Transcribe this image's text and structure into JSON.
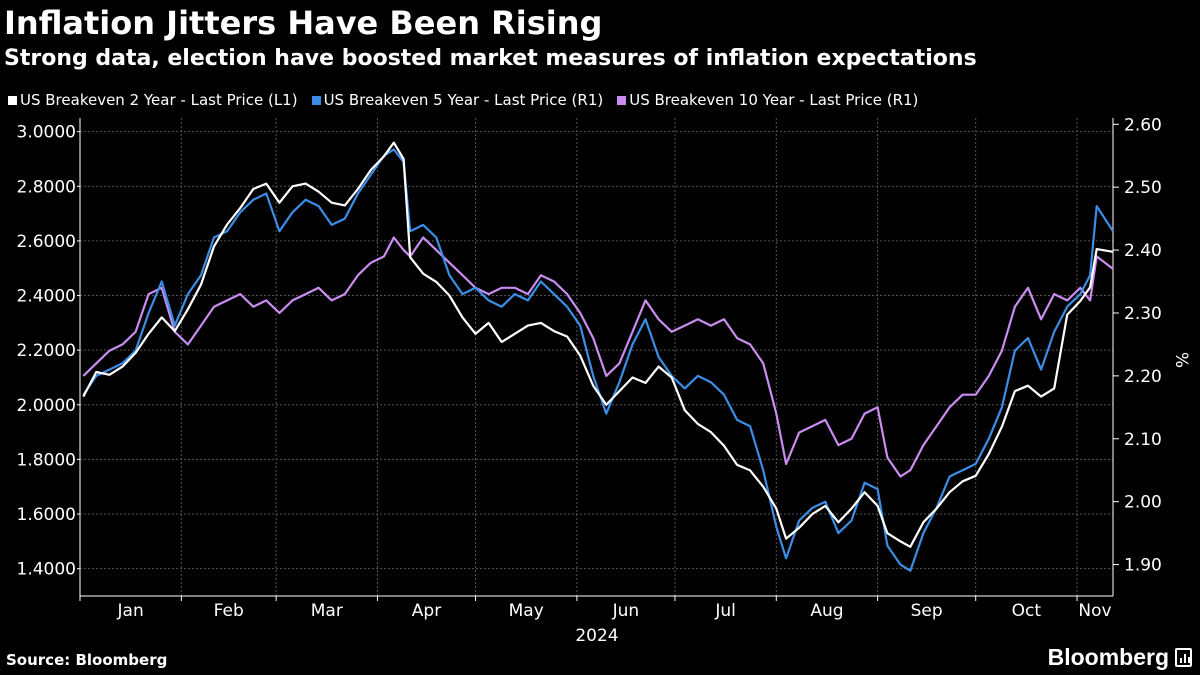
{
  "header": {
    "title": "Inflation Jitters Have Been Rising",
    "subtitle": "Strong data, election have boosted market measures of inflation expectations"
  },
  "footer": {
    "source": "Source: Bloomberg",
    "logo_text": "Bloomberg"
  },
  "chart_data": {
    "type": "line",
    "title": "Inflation Jitters Have Been Rising",
    "subtitle": "Strong data, election have boosted market measures of inflation expectations",
    "xlabel": "2024",
    "right_axis_unit": "%",
    "grid": true,
    "legend_position": "top-left",
    "x_ticks": [
      "Jan",
      "Feb",
      "Mar",
      "Apr",
      "May",
      "Jun",
      "Jul",
      "Aug",
      "Sep",
      "Oct",
      "Nov"
    ],
    "x_range": [
      "2024-01-01",
      "2024-11-12"
    ],
    "y_left": {
      "range": [
        1.3,
        3.05
      ],
      "ticks": [
        "3.0000",
        "2.8000",
        "2.6000",
        "2.4000",
        "2.2000",
        "2.0000",
        "1.8000",
        "1.6000",
        "1.4000"
      ]
    },
    "y_right": {
      "range": [
        1.85,
        2.61
      ],
      "ticks": [
        "2.60",
        "2.50",
        "2.40",
        "2.30",
        "2.20",
        "2.10",
        "2.00",
        "1.90"
      ]
    },
    "series": [
      {
        "name": "US Breakeven 2 Year - Last Price (L1)",
        "axis": "left",
        "color": "#ffffff",
        "points": [
          [
            "2024-01-02",
            2.03
          ],
          [
            "2024-01-06",
            2.12
          ],
          [
            "2024-01-10",
            2.11
          ],
          [
            "2024-01-14",
            2.14
          ],
          [
            "2024-01-18",
            2.19
          ],
          [
            "2024-01-22",
            2.26
          ],
          [
            "2024-01-26",
            2.32
          ],
          [
            "2024-01-30",
            2.27
          ],
          [
            "2024-02-03",
            2.35
          ],
          [
            "2024-02-07",
            2.44
          ],
          [
            "2024-02-11",
            2.58
          ],
          [
            "2024-02-15",
            2.66
          ],
          [
            "2024-02-19",
            2.72
          ],
          [
            "2024-02-23",
            2.79
          ],
          [
            "2024-02-27",
            2.81
          ],
          [
            "2024-03-02",
            2.74
          ],
          [
            "2024-03-06",
            2.8
          ],
          [
            "2024-03-10",
            2.81
          ],
          [
            "2024-03-14",
            2.78
          ],
          [
            "2024-03-18",
            2.74
          ],
          [
            "2024-03-22",
            2.73
          ],
          [
            "2024-03-26",
            2.79
          ],
          [
            "2024-03-30",
            2.86
          ],
          [
            "2024-04-03",
            2.91
          ],
          [
            "2024-04-06",
            2.96
          ],
          [
            "2024-04-09",
            2.9
          ],
          [
            "2024-04-11",
            2.54
          ],
          [
            "2024-04-15",
            2.48
          ],
          [
            "2024-04-19",
            2.45
          ],
          [
            "2024-04-23",
            2.4
          ],
          [
            "2024-04-27",
            2.32
          ],
          [
            "2024-05-01",
            2.26
          ],
          [
            "2024-05-05",
            2.3
          ],
          [
            "2024-05-09",
            2.23
          ],
          [
            "2024-05-13",
            2.26
          ],
          [
            "2024-05-17",
            2.29
          ],
          [
            "2024-05-21",
            2.3
          ],
          [
            "2024-05-25",
            2.27
          ],
          [
            "2024-05-29",
            2.25
          ],
          [
            "2024-06-02",
            2.18
          ],
          [
            "2024-06-06",
            2.07
          ],
          [
            "2024-06-10",
            2.0
          ],
          [
            "2024-06-14",
            2.05
          ],
          [
            "2024-06-18",
            2.1
          ],
          [
            "2024-06-22",
            2.08
          ],
          [
            "2024-06-26",
            2.14
          ],
          [
            "2024-06-30",
            2.1
          ],
          [
            "2024-07-04",
            1.98
          ],
          [
            "2024-07-08",
            1.93
          ],
          [
            "2024-07-12",
            1.9
          ],
          [
            "2024-07-16",
            1.85
          ],
          [
            "2024-07-20",
            1.78
          ],
          [
            "2024-07-24",
            1.76
          ],
          [
            "2024-07-28",
            1.7
          ],
          [
            "2024-08-01",
            1.62
          ],
          [
            "2024-08-04",
            1.51
          ],
          [
            "2024-08-08",
            1.55
          ],
          [
            "2024-08-12",
            1.6
          ],
          [
            "2024-08-16",
            1.63
          ],
          [
            "2024-08-20",
            1.57
          ],
          [
            "2024-08-24",
            1.62
          ],
          [
            "2024-08-28",
            1.68
          ],
          [
            "2024-09-01",
            1.63
          ],
          [
            "2024-09-04",
            1.53
          ],
          [
            "2024-09-08",
            1.5
          ],
          [
            "2024-09-11",
            1.48
          ],
          [
            "2024-09-15",
            1.57
          ],
          [
            "2024-09-19",
            1.62
          ],
          [
            "2024-09-23",
            1.68
          ],
          [
            "2024-09-27",
            1.72
          ],
          [
            "2024-10-01",
            1.74
          ],
          [
            "2024-10-05",
            1.82
          ],
          [
            "2024-10-09",
            1.92
          ],
          [
            "2024-10-13",
            2.05
          ],
          [
            "2024-10-17",
            2.07
          ],
          [
            "2024-10-21",
            2.03
          ],
          [
            "2024-10-25",
            2.06
          ],
          [
            "2024-10-29",
            2.33
          ],
          [
            "2024-11-02",
            2.38
          ],
          [
            "2024-11-05",
            2.43
          ],
          [
            "2024-11-07",
            2.57
          ],
          [
            "2024-11-12",
            2.56
          ]
        ]
      },
      {
        "name": "US Breakeven 5 Year - Last Price (R1)",
        "axis": "right",
        "color": "#3a8ee6",
        "points": [
          [
            "2024-01-02",
            2.17
          ],
          [
            "2024-01-06",
            2.2
          ],
          [
            "2024-01-10",
            2.21
          ],
          [
            "2024-01-14",
            2.22
          ],
          [
            "2024-01-18",
            2.24
          ],
          [
            "2024-01-22",
            2.3
          ],
          [
            "2024-01-26",
            2.35
          ],
          [
            "2024-01-30",
            2.28
          ],
          [
            "2024-02-03",
            2.33
          ],
          [
            "2024-02-07",
            2.36
          ],
          [
            "2024-02-11",
            2.42
          ],
          [
            "2024-02-15",
            2.43
          ],
          [
            "2024-02-19",
            2.46
          ],
          [
            "2024-02-23",
            2.48
          ],
          [
            "2024-02-27",
            2.49
          ],
          [
            "2024-03-02",
            2.43
          ],
          [
            "2024-03-06",
            2.46
          ],
          [
            "2024-03-10",
            2.48
          ],
          [
            "2024-03-14",
            2.47
          ],
          [
            "2024-03-18",
            2.44
          ],
          [
            "2024-03-22",
            2.45
          ],
          [
            "2024-03-26",
            2.49
          ],
          [
            "2024-03-30",
            2.52
          ],
          [
            "2024-04-03",
            2.55
          ],
          [
            "2024-04-06",
            2.56
          ],
          [
            "2024-04-09",
            2.54
          ],
          [
            "2024-04-11",
            2.43
          ],
          [
            "2024-04-15",
            2.44
          ],
          [
            "2024-04-19",
            2.42
          ],
          [
            "2024-04-23",
            2.36
          ],
          [
            "2024-04-27",
            2.33
          ],
          [
            "2024-05-01",
            2.34
          ],
          [
            "2024-05-05",
            2.32
          ],
          [
            "2024-05-09",
            2.31
          ],
          [
            "2024-05-13",
            2.33
          ],
          [
            "2024-05-17",
            2.32
          ],
          [
            "2024-05-21",
            2.35
          ],
          [
            "2024-05-25",
            2.33
          ],
          [
            "2024-05-29",
            2.31
          ],
          [
            "2024-06-02",
            2.28
          ],
          [
            "2024-06-06",
            2.2
          ],
          [
            "2024-06-10",
            2.14
          ],
          [
            "2024-06-14",
            2.19
          ],
          [
            "2024-06-18",
            2.25
          ],
          [
            "2024-06-22",
            2.29
          ],
          [
            "2024-06-26",
            2.23
          ],
          [
            "2024-06-30",
            2.2
          ],
          [
            "2024-07-04",
            2.18
          ],
          [
            "2024-07-08",
            2.2
          ],
          [
            "2024-07-12",
            2.19
          ],
          [
            "2024-07-16",
            2.17
          ],
          [
            "2024-07-20",
            2.13
          ],
          [
            "2024-07-24",
            2.12
          ],
          [
            "2024-07-28",
            2.05
          ],
          [
            "2024-08-01",
            1.96
          ],
          [
            "2024-08-04",
            1.91
          ],
          [
            "2024-08-08",
            1.97
          ],
          [
            "2024-08-12",
            1.99
          ],
          [
            "2024-08-16",
            2.0
          ],
          [
            "2024-08-20",
            1.95
          ],
          [
            "2024-08-24",
            1.97
          ],
          [
            "2024-08-28",
            2.03
          ],
          [
            "2024-09-01",
            2.02
          ],
          [
            "2024-09-04",
            1.93
          ],
          [
            "2024-09-08",
            1.9
          ],
          [
            "2024-09-11",
            1.89
          ],
          [
            "2024-09-15",
            1.95
          ],
          [
            "2024-09-19",
            1.99
          ],
          [
            "2024-09-23",
            2.04
          ],
          [
            "2024-09-27",
            2.05
          ],
          [
            "2024-10-01",
            2.06
          ],
          [
            "2024-10-05",
            2.1
          ],
          [
            "2024-10-09",
            2.15
          ],
          [
            "2024-10-13",
            2.24
          ],
          [
            "2024-10-17",
            2.26
          ],
          [
            "2024-10-21",
            2.21
          ],
          [
            "2024-10-25",
            2.27
          ],
          [
            "2024-10-29",
            2.31
          ],
          [
            "2024-11-02",
            2.33
          ],
          [
            "2024-11-05",
            2.36
          ],
          [
            "2024-11-07",
            2.47
          ],
          [
            "2024-11-12",
            2.43
          ]
        ]
      },
      {
        "name": "US Breakeven 10 Year - Last Price (R1)",
        "axis": "right",
        "color": "#c98df0",
        "points": [
          [
            "2024-01-02",
            2.2
          ],
          [
            "2024-01-06",
            2.22
          ],
          [
            "2024-01-10",
            2.24
          ],
          [
            "2024-01-14",
            2.25
          ],
          [
            "2024-01-18",
            2.27
          ],
          [
            "2024-01-22",
            2.33
          ],
          [
            "2024-01-26",
            2.34
          ],
          [
            "2024-01-30",
            2.27
          ],
          [
            "2024-02-03",
            2.25
          ],
          [
            "2024-02-07",
            2.28
          ],
          [
            "2024-02-11",
            2.31
          ],
          [
            "2024-02-15",
            2.32
          ],
          [
            "2024-02-19",
            2.33
          ],
          [
            "2024-02-23",
            2.31
          ],
          [
            "2024-02-27",
            2.32
          ],
          [
            "2024-03-02",
            2.3
          ],
          [
            "2024-03-06",
            2.32
          ],
          [
            "2024-03-10",
            2.33
          ],
          [
            "2024-03-14",
            2.34
          ],
          [
            "2024-03-18",
            2.32
          ],
          [
            "2024-03-22",
            2.33
          ],
          [
            "2024-03-26",
            2.36
          ],
          [
            "2024-03-30",
            2.38
          ],
          [
            "2024-04-03",
            2.39
          ],
          [
            "2024-04-06",
            2.42
          ],
          [
            "2024-04-09",
            2.4
          ],
          [
            "2024-04-11",
            2.39
          ],
          [
            "2024-04-15",
            2.42
          ],
          [
            "2024-04-19",
            2.4
          ],
          [
            "2024-04-23",
            2.38
          ],
          [
            "2024-04-27",
            2.36
          ],
          [
            "2024-05-01",
            2.34
          ],
          [
            "2024-05-05",
            2.33
          ],
          [
            "2024-05-09",
            2.34
          ],
          [
            "2024-05-13",
            2.34
          ],
          [
            "2024-05-17",
            2.33
          ],
          [
            "2024-05-21",
            2.36
          ],
          [
            "2024-05-25",
            2.35
          ],
          [
            "2024-05-29",
            2.33
          ],
          [
            "2024-06-02",
            2.3
          ],
          [
            "2024-06-06",
            2.26
          ],
          [
            "2024-06-10",
            2.2
          ],
          [
            "2024-06-14",
            2.22
          ],
          [
            "2024-06-18",
            2.27
          ],
          [
            "2024-06-22",
            2.32
          ],
          [
            "2024-06-26",
            2.29
          ],
          [
            "2024-06-30",
            2.27
          ],
          [
            "2024-07-04",
            2.28
          ],
          [
            "2024-07-08",
            2.29
          ],
          [
            "2024-07-12",
            2.28
          ],
          [
            "2024-07-16",
            2.29
          ],
          [
            "2024-07-20",
            2.26
          ],
          [
            "2024-07-24",
            2.25
          ],
          [
            "2024-07-28",
            2.22
          ],
          [
            "2024-08-01",
            2.14
          ],
          [
            "2024-08-04",
            2.06
          ],
          [
            "2024-08-08",
            2.11
          ],
          [
            "2024-08-12",
            2.12
          ],
          [
            "2024-08-16",
            2.13
          ],
          [
            "2024-08-20",
            2.09
          ],
          [
            "2024-08-24",
            2.1
          ],
          [
            "2024-08-28",
            2.14
          ],
          [
            "2024-09-01",
            2.15
          ],
          [
            "2024-09-04",
            2.07
          ],
          [
            "2024-09-08",
            2.04
          ],
          [
            "2024-09-11",
            2.05
          ],
          [
            "2024-09-15",
            2.09
          ],
          [
            "2024-09-19",
            2.12
          ],
          [
            "2024-09-23",
            2.15
          ],
          [
            "2024-09-27",
            2.17
          ],
          [
            "2024-10-01",
            2.17
          ],
          [
            "2024-10-05",
            2.2
          ],
          [
            "2024-10-09",
            2.24
          ],
          [
            "2024-10-13",
            2.31
          ],
          [
            "2024-10-17",
            2.34
          ],
          [
            "2024-10-21",
            2.29
          ],
          [
            "2024-10-25",
            2.33
          ],
          [
            "2024-10-29",
            2.32
          ],
          [
            "2024-11-02",
            2.34
          ],
          [
            "2024-11-05",
            2.32
          ],
          [
            "2024-11-07",
            2.39
          ],
          [
            "2024-11-12",
            2.37
          ]
        ]
      }
    ]
  }
}
